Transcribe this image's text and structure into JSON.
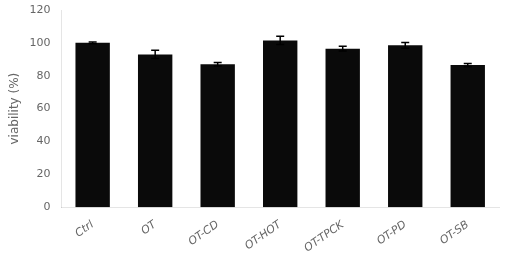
{
  "chart_data": {
    "type": "bar",
    "categories": [
      "Ctrl",
      "OT",
      "OT-CD",
      "OT-HOT",
      "OT-TPCK",
      "OT-PD",
      "OT-SB"
    ],
    "values": [
      100.0,
      93.0,
      87.0,
      101.5,
      96.5,
      98.5,
      86.5
    ],
    "errors": [
      0.5,
      2.5,
      1.0,
      2.5,
      1.5,
      1.8,
      1.0
    ],
    "color": "#0a0a0a",
    "ylabel": "viability (%)",
    "ylim": [
      0,
      120
    ],
    "yticks": [
      0,
      20,
      40,
      60,
      80,
      100,
      120
    ],
    "grid": false
  }
}
